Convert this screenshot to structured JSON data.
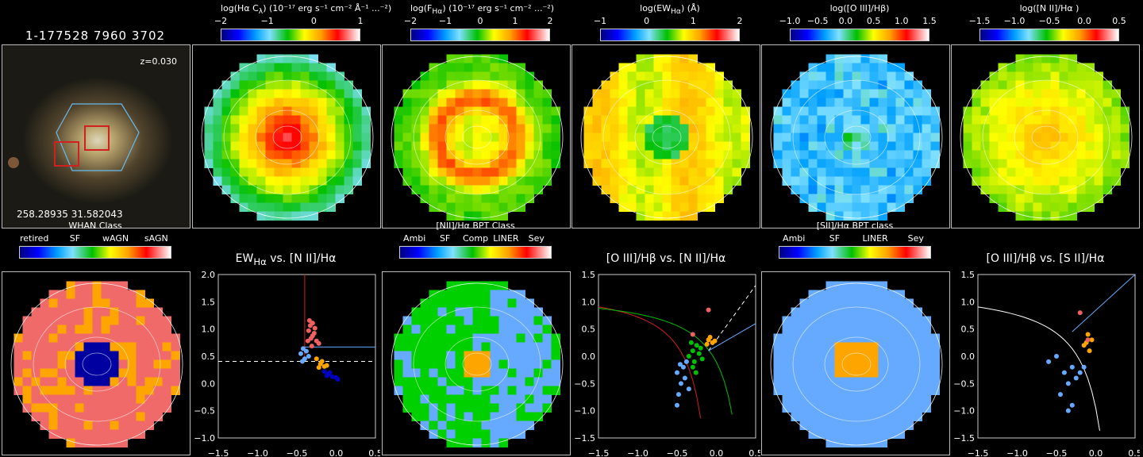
{
  "galaxy": {
    "id": "1-177528 7960 3702",
    "redshift": "z=0.030",
    "coords": "258.28935 31.582043"
  },
  "map_panels": [
    {
      "title": "log(Hα C<sub>λ</sub>)  (10⁻¹⁷ erg s⁻¹ cm⁻² Å⁻¹ ...⁻²)",
      "ticks": [
        "−2",
        "−1",
        "0",
        "1"
      ],
      "cmap": "rainbow",
      "field": "continuum"
    },
    {
      "title": "log(F<sub>Hα</sub>)  (10⁻¹⁷ erg s⁻¹ cm⁻² ...⁻²)",
      "ticks": [
        "−2",
        "−1",
        "0",
        "1",
        "2"
      ],
      "cmap": "rainbow",
      "field": "flux"
    },
    {
      "title": "log(EW<sub>Hα</sub>)  (Å)",
      "ticks": [
        "−1",
        "0",
        "1",
        "2"
      ],
      "cmap": "rainbow",
      "field": "ew"
    },
    {
      "title": "log([O III]/Hβ)",
      "ticks": [
        "−1.0",
        "−0.5",
        "0.0",
        "0.5",
        "1.0",
        "1.5"
      ],
      "cmap": "rainbow",
      "field": "oiii"
    },
    {
      "title": "log([N II]/Hα )",
      "ticks": [
        "−1.5",
        "−1.0",
        "−0.5",
        "0.0",
        "0.5"
      ],
      "cmap": "rainbow",
      "field": "nii"
    }
  ],
  "class_panels": [
    {
      "title": "WHAN Class",
      "labels": [
        "retired",
        "SF",
        "wAGN",
        "sAGN"
      ]
    },
    {
      "title": "[NII]/Hα BPT Class",
      "labels": [
        "Ambi",
        "SF",
        "Comp",
        "LINER",
        "Sey"
      ]
    },
    {
      "title": "[SII]/Hα BPT class",
      "labels": [
        "Ambi",
        "SF",
        "LINER",
        "Sey"
      ]
    }
  ],
  "chart_data": [
    {
      "type": "scatter",
      "title": "EW<sub>Hα</sub> vs. [N II]/Hα",
      "xlim": [
        -1.5,
        0.5
      ],
      "ylim": [
        -1.0,
        2.2
      ],
      "xticks": [
        "−1.5",
        "−1.0",
        "−0.5",
        "0.0",
        "0.5"
      ],
      "yticks": [
        "−1.0",
        "−0.5",
        "0.0",
        "0.5",
        "1.0",
        "1.5",
        "2.0"
      ],
      "series": [
        {
          "color": "#f06060",
          "points": [
            [
              -0.35,
              1.1
            ],
            [
              -0.33,
              1.2
            ],
            [
              -0.3,
              1.0
            ],
            [
              -0.32,
              0.95
            ],
            [
              -0.28,
              1.05
            ],
            [
              -0.36,
              0.9
            ],
            [
              -0.3,
              1.25
            ],
            [
              -0.25,
              0.9
            ],
            [
              -0.22,
              0.85
            ],
            [
              -0.34,
              1.3
            ],
            [
              -0.31,
              0.8
            ],
            [
              -0.27,
              1.15
            ]
          ]
        },
        {
          "color": "#66aaff",
          "points": [
            [
              -0.45,
              0.65
            ],
            [
              -0.42,
              0.75
            ],
            [
              -0.4,
              0.55
            ],
            [
              -0.38,
              0.7
            ],
            [
              -0.35,
              0.6
            ],
            [
              -0.43,
              0.5
            ]
          ]
        },
        {
          "color": "#ffa500",
          "points": [
            [
              -0.25,
              0.55
            ],
            [
              -0.2,
              0.45
            ],
            [
              -0.18,
              0.5
            ],
            [
              -0.15,
              0.4
            ],
            [
              -0.22,
              0.38
            ],
            [
              -0.12,
              0.42
            ]
          ]
        },
        {
          "color": "#0000c0",
          "points": [
            [
              -0.15,
              0.3
            ],
            [
              -0.1,
              0.25
            ],
            [
              -0.05,
              0.2
            ],
            [
              0.0,
              0.18
            ],
            [
              -0.08,
              0.28
            ],
            [
              -0.12,
              0.22
            ],
            [
              0.02,
              0.15
            ]
          ]
        }
      ]
    },
    {
      "type": "scatter",
      "title": "[O III]/Hβ vs. [N II]/Hα",
      "xlim": [
        -1.5,
        0.5
      ],
      "ylim": [
        -1.5,
        1.5
      ],
      "xticks": [
        "−1.5",
        "−1.0",
        "−0.5",
        "0.0",
        "0.5"
      ],
      "yticks": [
        "−1.5",
        "−1.0",
        "−0.5",
        "0.0",
        "0.5",
        "1.0",
        "1.5"
      ],
      "series": [
        {
          "color": "#66aaff",
          "points": [
            [
              -0.5,
              -0.3
            ],
            [
              -0.45,
              -0.5
            ],
            [
              -0.42,
              -0.2
            ],
            [
              -0.48,
              -0.7
            ],
            [
              -0.4,
              -0.4
            ],
            [
              -0.38,
              -0.1
            ],
            [
              -0.35,
              -0.6
            ],
            [
              -0.5,
              -0.9
            ],
            [
              -0.46,
              -0.15
            ]
          ]
        },
        {
          "color": "#00c000",
          "points": [
            [
              -0.35,
              0.0
            ],
            [
              -0.3,
              0.1
            ],
            [
              -0.28,
              -0.1
            ],
            [
              -0.25,
              0.2
            ],
            [
              -0.22,
              0.05
            ],
            [
              -0.3,
              -0.2
            ],
            [
              -0.2,
              0.15
            ],
            [
              -0.18,
              -0.05
            ],
            [
              -0.32,
              0.25
            ],
            [
              -0.26,
              -0.3
            ]
          ]
        },
        {
          "color": "#ffa500",
          "points": [
            [
              -0.1,
              0.3
            ],
            [
              -0.05,
              0.25
            ],
            [
              -0.08,
              0.35
            ],
            [
              -0.02,
              0.28
            ],
            [
              -0.12,
              0.22
            ]
          ]
        },
        {
          "color": "#f06060",
          "points": [
            [
              -0.1,
              0.85
            ],
            [
              -0.3,
              0.4
            ]
          ]
        }
      ]
    },
    {
      "type": "scatter",
      "title": "[O III]/Hβ vs. [S II]/Hα",
      "xlim": [
        -1.5,
        0.5
      ],
      "ylim": [
        -1.5,
        1.5
      ],
      "xticks": [
        "−1.5",
        "−1.0",
        "−0.5",
        "0.0",
        "0.5"
      ],
      "yticks": [
        "−1.5",
        "−1.0",
        "−0.5",
        "0.0",
        "0.5",
        "1.0",
        "1.5"
      ],
      "series": [
        {
          "color": "#66aaff",
          "points": [
            [
              -0.4,
              -0.3
            ],
            [
              -0.35,
              -0.5
            ],
            [
              -0.3,
              -0.2
            ],
            [
              -0.45,
              -0.7
            ],
            [
              -0.25,
              -0.4
            ],
            [
              -0.5,
              0.0
            ],
            [
              -0.3,
              -0.9
            ],
            [
              -0.2,
              -0.3
            ],
            [
              -0.6,
              -0.1
            ],
            [
              -0.35,
              -1.0
            ],
            [
              -0.15,
              -0.2
            ]
          ]
        },
        {
          "color": "#ffa500",
          "points": [
            [
              -0.15,
              0.2
            ],
            [
              -0.1,
              0.4
            ],
            [
              -0.05,
              0.3
            ],
            [
              -0.08,
              0.1
            ],
            [
              -0.12,
              0.25
            ]
          ]
        },
        {
          "color": "#f06060",
          "points": [
            [
              -0.2,
              0.8
            ],
            [
              -0.1,
              0.3
            ]
          ]
        }
      ]
    }
  ]
}
